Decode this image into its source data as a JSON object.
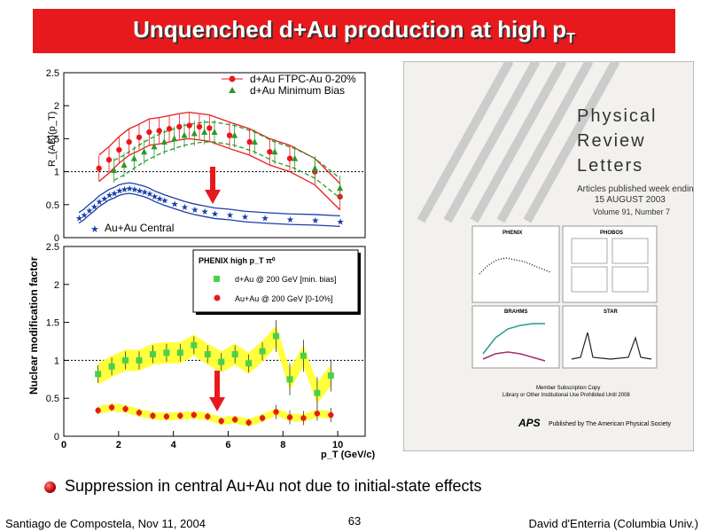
{
  "slide": {
    "title_main": "Unquenched d+Au production at high p",
    "title_sub": "T",
    "bullet": "Suppression in central Au+Au not due to initial-state effects",
    "footer_left": "Santiago de Compostela, Nov 11, 2004",
    "page_number": "63",
    "footer_right": "David d'Enterria (Columbia Univ.)",
    "accent_color": "#e8191c"
  },
  "journal": {
    "name_line1": "Physical",
    "name_line2": "Review",
    "name_line3": "Letters",
    "issue_line1": "Articles published week ending",
    "issue_line2": "15 AUGUST 2003",
    "volume": "Volume 91, Number 7",
    "panel_labels": [
      "PHENIX",
      "PHOBOS",
      "BRAHMS",
      "STAR"
    ],
    "subscription_line1": "Member Subscription Copy",
    "subscription_line2": "Library or Other Institutional Use Prohibited Until 2008",
    "publisher_logo": "APS",
    "publisher_text": "Published by The American Physical Society"
  },
  "chart_data": [
    {
      "type": "scatter",
      "ylabel": "R_{AB}(p_T)",
      "ylim": [
        0,
        2.5
      ],
      "yticks": [
        "0",
        "0.5",
        "1",
        "1.5",
        "2",
        "2.5"
      ],
      "xlim": [
        0,
        6
      ],
      "grid": false,
      "legend_position": "top-right",
      "series": [
        {
          "name": "d+Au FTPC-Au 0-20%",
          "color": "#e8191c",
          "marker": "circle",
          "x": [
            0.7,
            0.9,
            1.1,
            1.3,
            1.5,
            1.7,
            1.9,
            2.1,
            2.3,
            2.5,
            2.7,
            2.9,
            3.3,
            3.7,
            4.1,
            4.5,
            5.0,
            5.5
          ],
          "y": [
            1.05,
            1.18,
            1.33,
            1.45,
            1.52,
            1.6,
            1.62,
            1.65,
            1.68,
            1.7,
            1.68,
            1.66,
            1.55,
            1.45,
            1.3,
            1.2,
            1.0,
            0.62
          ]
        },
        {
          "name": "d+Au Minimum Bias",
          "color": "#2a9a2a",
          "marker": "triangle",
          "x": [
            1.0,
            1.2,
            1.4,
            1.6,
            1.8,
            2.0,
            2.2,
            2.4,
            2.6,
            2.8,
            3.0,
            3.4,
            3.8,
            4.2,
            4.6,
            5.0,
            5.5
          ],
          "y": [
            1.02,
            1.1,
            1.2,
            1.3,
            1.38,
            1.45,
            1.5,
            1.55,
            1.58,
            1.6,
            1.6,
            1.55,
            1.45,
            1.3,
            1.2,
            1.05,
            0.75
          ]
        },
        {
          "name": "Au+Au Central",
          "color": "#1a3fa8",
          "marker": "star",
          "x": [
            0.3,
            0.4,
            0.5,
            0.6,
            0.7,
            0.8,
            0.9,
            1.0,
            1.1,
            1.2,
            1.3,
            1.4,
            1.5,
            1.6,
            1.7,
            1.8,
            1.9,
            2.0,
            2.2,
            2.4,
            2.6,
            2.8,
            3.0,
            3.3,
            3.6,
            4.0,
            4.5,
            5.0,
            5.5
          ],
          "y": [
            0.3,
            0.35,
            0.42,
            0.48,
            0.55,
            0.6,
            0.65,
            0.68,
            0.72,
            0.74,
            0.75,
            0.74,
            0.72,
            0.7,
            0.67,
            0.63,
            0.6,
            0.57,
            0.52,
            0.47,
            0.43,
            0.4,
            0.37,
            0.35,
            0.32,
            0.3,
            0.28,
            0.27,
            0.25
          ]
        }
      ]
    },
    {
      "type": "scatter",
      "xlabel": "p_T (GeV/c)",
      "ylabel": "Nuclear modification factor",
      "xlim": [
        0,
        11
      ],
      "ylim": [
        0,
        2.5
      ],
      "xticks": [
        "0",
        "2",
        "4",
        "6",
        "8",
        "10"
      ],
      "yticks": [
        "0",
        "0.5",
        "1",
        "1.5",
        "2",
        "2.5"
      ],
      "grid": false,
      "legend_position": "top-right",
      "legend_title": "PHENIX high p_T π⁰",
      "series": [
        {
          "name": "d+Au @ 200 GeV [min. bias]",
          "color": "#4ad14a",
          "marker": "square",
          "x": [
            1.25,
            1.75,
            2.25,
            2.75,
            3.25,
            3.75,
            4.25,
            4.75,
            5.25,
            5.75,
            6.25,
            6.75,
            7.25,
            7.75,
            8.25,
            8.75,
            9.25,
            9.75
          ],
          "y": [
            0.82,
            0.92,
            1.0,
            1.0,
            1.08,
            1.1,
            1.1,
            1.2,
            1.08,
            0.98,
            1.08,
            0.96,
            1.12,
            1.32,
            0.75,
            1.06,
            0.57,
            0.8
          ]
        },
        {
          "name": "Au+Au @ 200 GeV [0-10%]",
          "color": "#e8191c",
          "marker": "circle",
          "x": [
            1.25,
            1.75,
            2.25,
            2.75,
            3.25,
            3.75,
            4.25,
            4.75,
            5.25,
            5.75,
            6.25,
            6.75,
            7.25,
            7.75,
            8.25,
            8.75,
            9.25,
            9.75
          ],
          "y": [
            0.34,
            0.38,
            0.36,
            0.31,
            0.27,
            0.26,
            0.27,
            0.28,
            0.26,
            0.2,
            0.22,
            0.18,
            0.24,
            0.32,
            0.25,
            0.24,
            0.3,
            0.28
          ]
        }
      ]
    }
  ]
}
